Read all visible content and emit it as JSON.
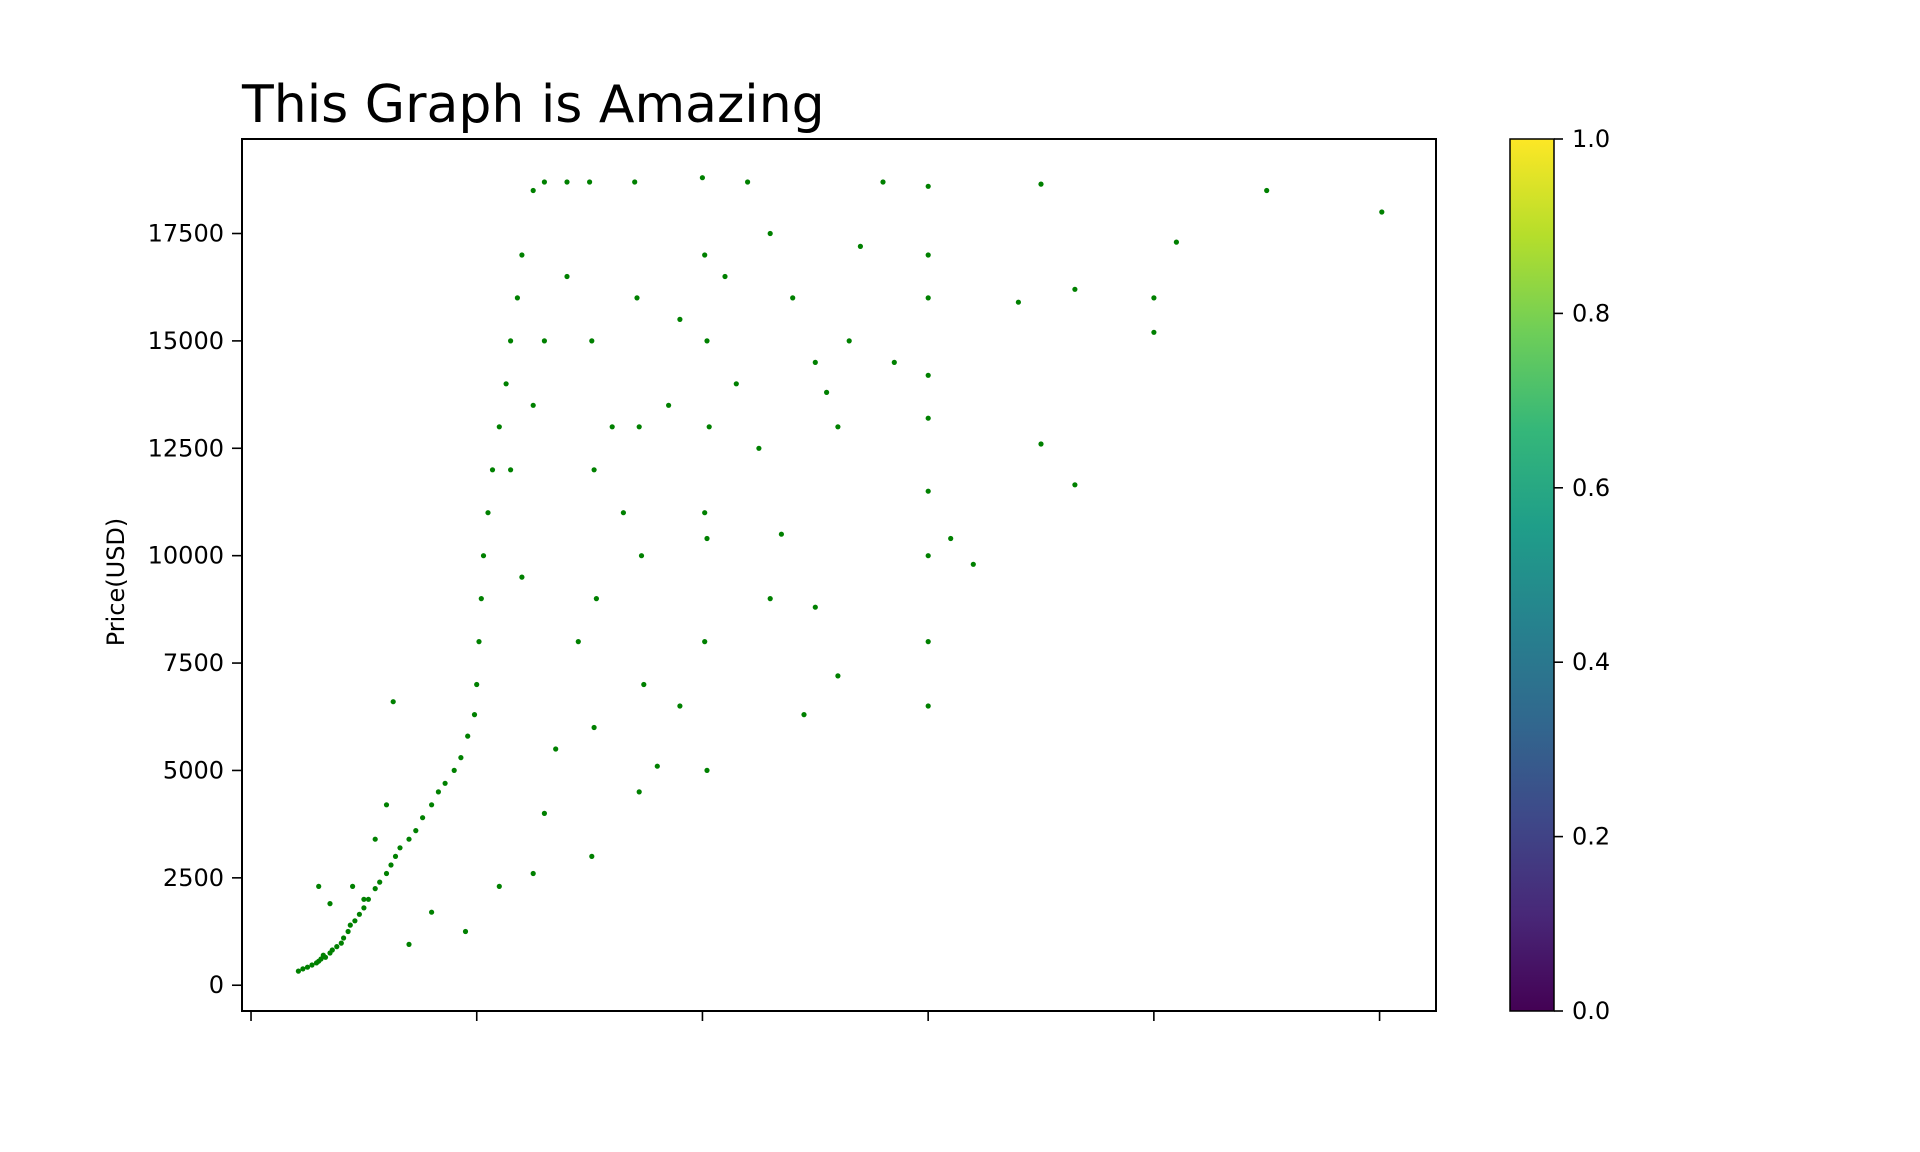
{
  "chart_data": {
    "type": "scatter",
    "title": "This Graph is Amazing",
    "xlabel": "",
    "ylabel": "Price(USD)",
    "xlim": [
      -0.04,
      5.25
    ],
    "ylim": [
      -600,
      19700
    ],
    "x_ticks": [
      0,
      1,
      2,
      3,
      4,
      5
    ],
    "x_tick_labels": [
      "",
      "",
      "",
      "",
      "",
      ""
    ],
    "y_ticks": [
      0,
      2500,
      5000,
      7500,
      10000,
      12500,
      15000,
      17500
    ],
    "y_tick_labels": [
      "0",
      "2500",
      "5000",
      "7500",
      "10000",
      "12500",
      "15000",
      "17500"
    ],
    "grid": false,
    "legend": "none",
    "marker_color": "#008000",
    "colorbar": {
      "colormap": "viridis",
      "range": [
        0.0,
        1.0
      ],
      "ticks": [
        0.0,
        0.2,
        0.4,
        0.6,
        0.8,
        1.0
      ],
      "tick_labels": [
        "0.0",
        "0.2",
        "0.4",
        "0.6",
        "0.8",
        "1.0"
      ],
      "colors": [
        "#440154",
        "#482878",
        "#3e4989",
        "#31688e",
        "#26828e",
        "#1f9e89",
        "#35b779",
        "#6ece58",
        "#b5de2b",
        "#fde725"
      ]
    },
    "points": [
      [
        0.21,
        330
      ],
      [
        0.23,
        380
      ],
      [
        0.25,
        420
      ],
      [
        0.27,
        470
      ],
      [
        0.29,
        520
      ],
      [
        0.3,
        560
      ],
      [
        0.31,
        610
      ],
      [
        0.32,
        700
      ],
      [
        0.33,
        650
      ],
      [
        0.35,
        750
      ],
      [
        0.36,
        820
      ],
      [
        0.38,
        900
      ],
      [
        0.4,
        980
      ],
      [
        0.41,
        1100
      ],
      [
        0.43,
        1250
      ],
      [
        0.44,
        1400
      ],
      [
        0.46,
        1500
      ],
      [
        0.48,
        1650
      ],
      [
        0.5,
        1800
      ],
      [
        0.52,
        2000
      ],
      [
        0.55,
        2250
      ],
      [
        0.57,
        2400
      ],
      [
        0.6,
        2600
      ],
      [
        0.62,
        2800
      ],
      [
        0.64,
        3000
      ],
      [
        0.66,
        3200
      ],
      [
        0.7,
        3400
      ],
      [
        0.73,
        3600
      ],
      [
        0.76,
        3900
      ],
      [
        0.8,
        4200
      ],
      [
        0.83,
        4500
      ],
      [
        0.86,
        4700
      ],
      [
        0.9,
        5000
      ],
      [
        0.93,
        5300
      ],
      [
        0.96,
        5800
      ],
      [
        0.99,
        6300
      ],
      [
        1.0,
        7000
      ],
      [
        1.01,
        8000
      ],
      [
        1.02,
        9000
      ],
      [
        1.03,
        10000
      ],
      [
        1.05,
        11000
      ],
      [
        1.07,
        12000
      ],
      [
        1.1,
        13000
      ],
      [
        1.13,
        14000
      ],
      [
        1.15,
        15000
      ],
      [
        1.18,
        16000
      ],
      [
        1.2,
        17000
      ],
      [
        1.25,
        18500
      ],
      [
        1.3,
        18700
      ],
      [
        1.4,
        18700
      ],
      [
        1.5,
        18700
      ],
      [
        1.51,
        15000
      ],
      [
        1.52,
        12000
      ],
      [
        1.53,
        9000
      ],
      [
        1.52,
        6000
      ],
      [
        1.51,
        3000
      ],
      [
        1.7,
        18700
      ],
      [
        1.71,
        16000
      ],
      [
        1.72,
        13000
      ],
      [
        1.73,
        10000
      ],
      [
        1.74,
        7000
      ],
      [
        1.72,
        4500
      ],
      [
        2.0,
        18800
      ],
      [
        2.01,
        17000
      ],
      [
        2.02,
        15000
      ],
      [
        2.03,
        13000
      ],
      [
        2.01,
        11000
      ],
      [
        2.02,
        10400
      ],
      [
        2.01,
        8000
      ],
      [
        2.02,
        5000
      ],
      [
        2.2,
        18700
      ],
      [
        2.3,
        17500
      ],
      [
        2.4,
        16000
      ],
      [
        2.5,
        14500
      ],
      [
        2.6,
        13000
      ],
      [
        2.7,
        17200
      ],
      [
        2.8,
        18700
      ],
      [
        3.0,
        18600
      ],
      [
        3.0,
        17000
      ],
      [
        3.0,
        16000
      ],
      [
        3.0,
        14200
      ],
      [
        3.0,
        13200
      ],
      [
        3.0,
        11500
      ],
      [
        3.0,
        10000
      ],
      [
        3.0,
        8000
      ],
      [
        3.0,
        6500
      ],
      [
        3.1,
        10400
      ],
      [
        3.2,
        9800
      ],
      [
        3.4,
        15900
      ],
      [
        3.5,
        18650
      ],
      [
        3.5,
        12600
      ],
      [
        3.65,
        16200
      ],
      [
        3.65,
        11650
      ],
      [
        4.0,
        16000
      ],
      [
        4.0,
        15200
      ],
      [
        4.1,
        17300
      ],
      [
        4.5,
        18500
      ],
      [
        5.01,
        18000
      ],
      [
        2.5,
        8800
      ],
      [
        2.45,
        6300
      ],
      [
        2.6,
        7200
      ],
      [
        2.3,
        9000
      ],
      [
        1.9,
        6500
      ],
      [
        1.8,
        5100
      ],
      [
        1.25,
        2600
      ],
      [
        1.1,
        2300
      ],
      [
        0.95,
        1250
      ],
      [
        0.8,
        1700
      ],
      [
        0.7,
        950
      ],
      [
        0.63,
        6600
      ],
      [
        0.6,
        4200
      ],
      [
        0.55,
        3400
      ],
      [
        0.5,
        2000
      ],
      [
        0.45,
        2300
      ],
      [
        0.35,
        1900
      ],
      [
        0.3,
        2300
      ],
      [
        1.3,
        4000
      ],
      [
        1.35,
        5500
      ],
      [
        1.45,
        8000
      ],
      [
        1.6,
        13000
      ],
      [
        1.65,
        11000
      ],
      [
        1.85,
        13500
      ],
      [
        1.9,
        15500
      ],
      [
        2.1,
        16500
      ],
      [
        2.15,
        14000
      ],
      [
        2.25,
        12500
      ],
      [
        2.35,
        10500
      ],
      [
        2.55,
        13800
      ],
      [
        2.65,
        15000
      ],
      [
        2.85,
        14500
      ],
      [
        1.15,
        12000
      ],
      [
        1.2,
        9500
      ],
      [
        1.25,
        13500
      ],
      [
        1.3,
        15000
      ],
      [
        1.4,
        16500
      ]
    ]
  }
}
